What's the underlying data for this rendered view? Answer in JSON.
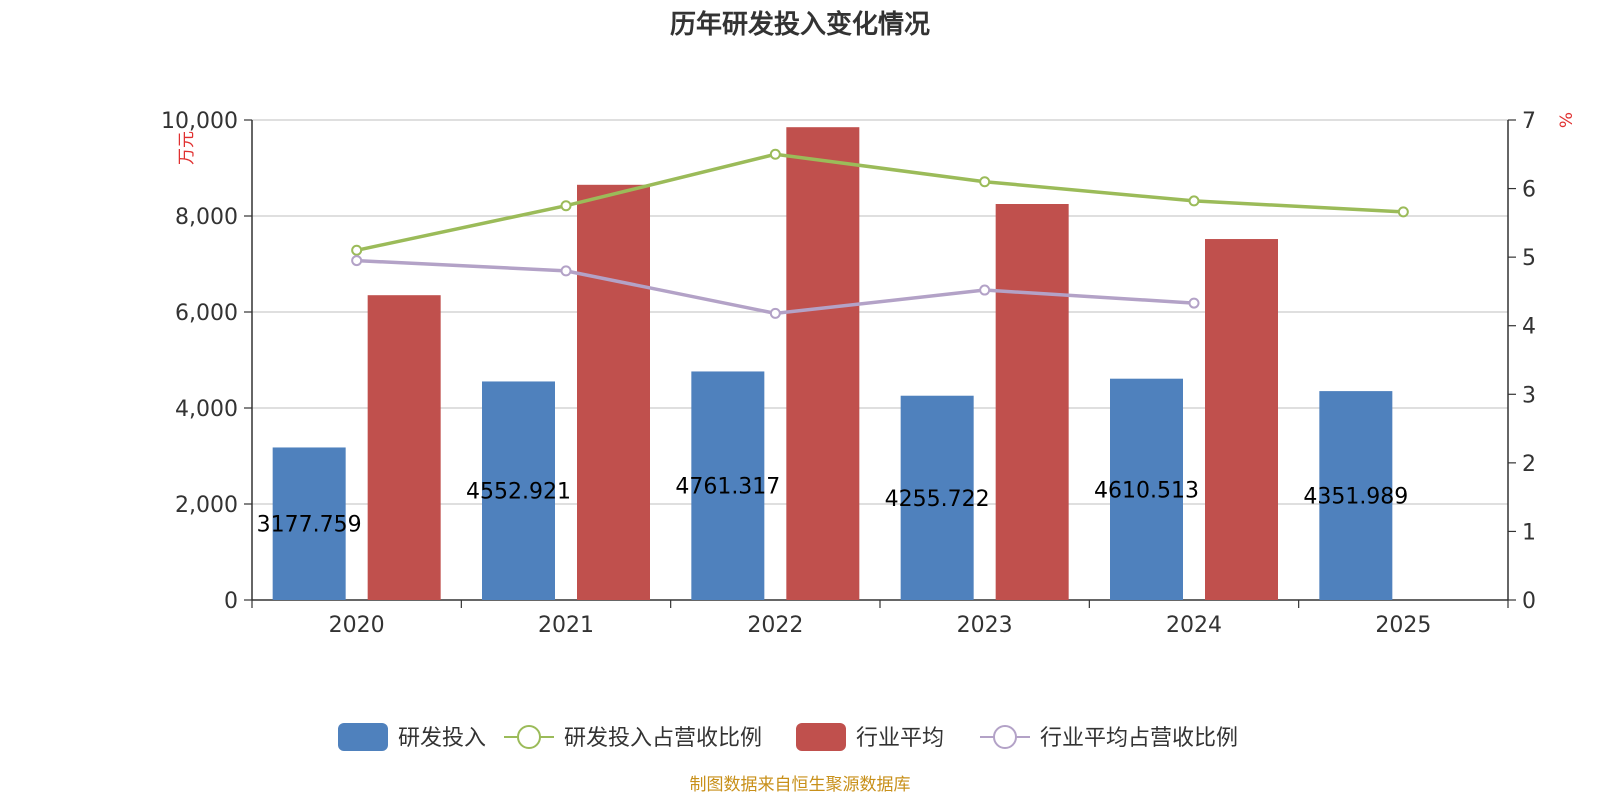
{
  "chart_data": {
    "type": "bar",
    "title": "历年研发投入变化情况",
    "categories": [
      "2020",
      "2021",
      "2022",
      "2023",
      "2024",
      "2025"
    ],
    "y_left": {
      "unit": "万元",
      "min": 0,
      "max": 10000,
      "ticks": [
        "0",
        "2,000",
        "4,000",
        "6,000",
        "8,000",
        "10,000"
      ]
    },
    "y_right": {
      "unit": "%",
      "min": 0,
      "max": 7,
      "ticks": [
        "0",
        "1",
        "2",
        "3",
        "4",
        "5",
        "6",
        "7"
      ]
    },
    "series": [
      {
        "name": "研发投入",
        "type": "bar",
        "axis": "left",
        "color": "#4f81bd",
        "values": [
          3177.759,
          4552.921,
          4761.317,
          4255.722,
          4610.513,
          4351.989
        ],
        "labels": [
          "3177.759",
          "4552.921",
          "4761.317",
          "4255.722",
          "4610.513",
          "4351.989"
        ]
      },
      {
        "name": "研发投入占营收比例",
        "type": "line",
        "axis": "right",
        "color": "#9bbb59",
        "values": [
          5.1,
          5.75,
          6.5,
          6.1,
          5.82,
          5.66
        ]
      },
      {
        "name": "行业平均",
        "type": "bar",
        "axis": "left",
        "color": "#c0504d",
        "values": [
          6350,
          8650,
          9850,
          8250,
          7520,
          null
        ]
      },
      {
        "name": "行业平均占营收比例",
        "type": "line",
        "axis": "right",
        "color": "#b3a2c7",
        "values": [
          4.95,
          4.8,
          4.18,
          4.52,
          4.33,
          null
        ]
      }
    ],
    "grid": true,
    "legend_position": "bottom-center"
  },
  "source_note": "制图数据来自恒生聚源数据库"
}
